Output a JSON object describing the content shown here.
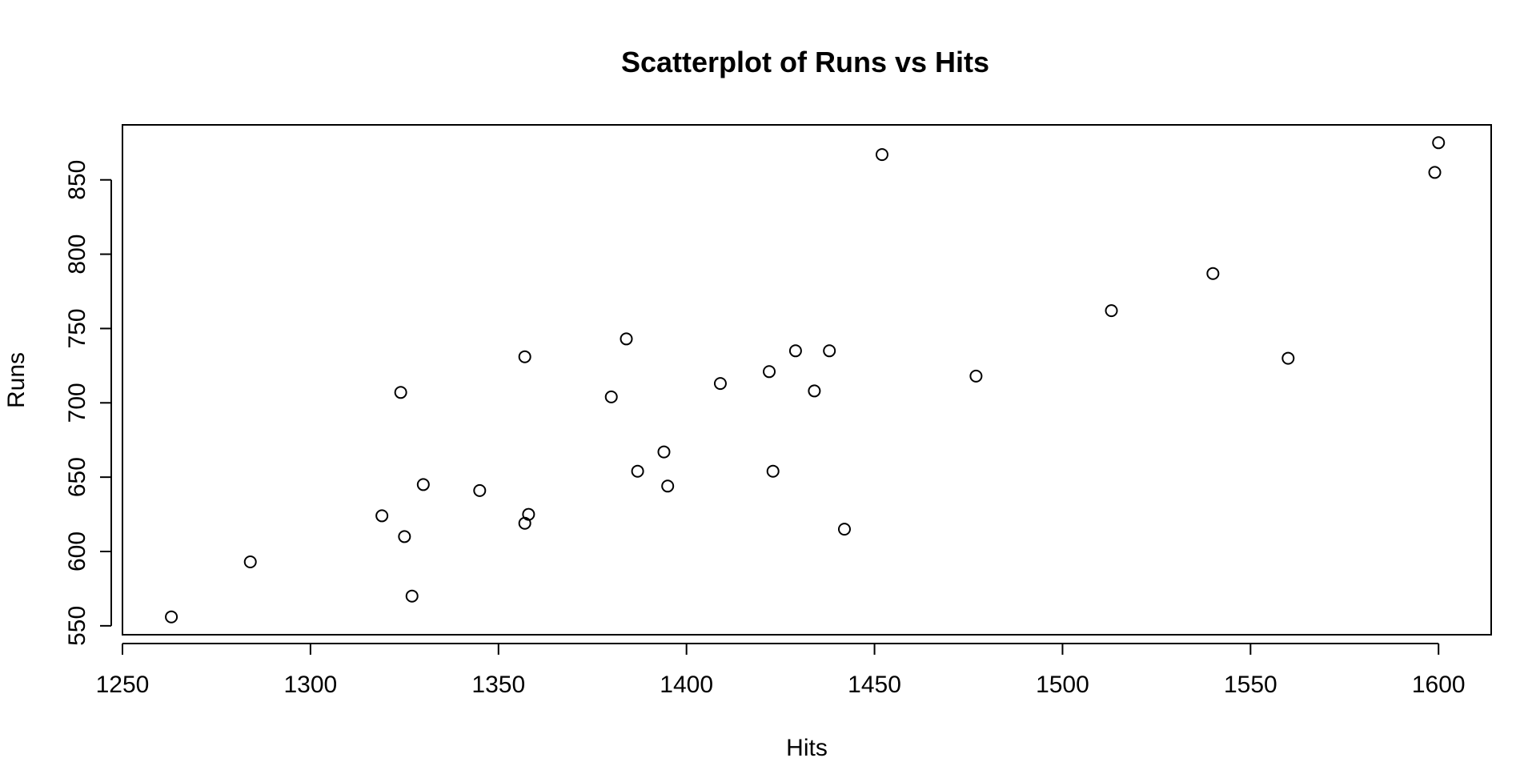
{
  "chart_data": {
    "type": "scatter",
    "title": "Scatterplot of Runs vs Hits",
    "xlabel": "Hits",
    "ylabel": "Runs",
    "xlim": [
      1250,
      1614
    ],
    "ylim": [
      544,
      887
    ],
    "xticks": [
      1250,
      1300,
      1350,
      1400,
      1450,
      1500,
      1550,
      1600
    ],
    "yticks": [
      550,
      600,
      650,
      700,
      750,
      800,
      850
    ],
    "grid": false,
    "points": [
      {
        "x": 1263,
        "y": 556
      },
      {
        "x": 1284,
        "y": 593
      },
      {
        "x": 1319,
        "y": 624
      },
      {
        "x": 1324,
        "y": 707
      },
      {
        "x": 1325,
        "y": 610
      },
      {
        "x": 1327,
        "y": 570
      },
      {
        "x": 1330,
        "y": 645
      },
      {
        "x": 1345,
        "y": 641
      },
      {
        "x": 1357,
        "y": 731
      },
      {
        "x": 1357,
        "y": 619
      },
      {
        "x": 1358,
        "y": 625
      },
      {
        "x": 1380,
        "y": 704
      },
      {
        "x": 1384,
        "y": 743
      },
      {
        "x": 1387,
        "y": 654
      },
      {
        "x": 1394,
        "y": 667
      },
      {
        "x": 1395,
        "y": 644
      },
      {
        "x": 1409,
        "y": 713
      },
      {
        "x": 1422,
        "y": 721
      },
      {
        "x": 1423,
        "y": 654
      },
      {
        "x": 1429,
        "y": 735
      },
      {
        "x": 1434,
        "y": 708
      },
      {
        "x": 1438,
        "y": 735
      },
      {
        "x": 1442,
        "y": 615
      },
      {
        "x": 1452,
        "y": 867
      },
      {
        "x": 1477,
        "y": 718
      },
      {
        "x": 1513,
        "y": 762
      },
      {
        "x": 1540,
        "y": 787
      },
      {
        "x": 1560,
        "y": 730
      },
      {
        "x": 1599,
        "y": 855
      },
      {
        "x": 1600,
        "y": 875
      }
    ]
  }
}
